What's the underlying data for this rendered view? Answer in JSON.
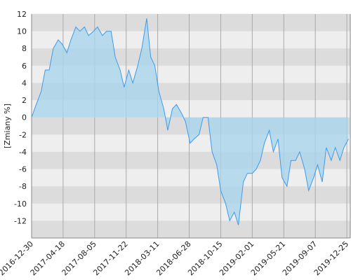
{
  "chart_data": {
    "type": "area",
    "y_label": "[Zmiany %]",
    "x": [
      "2016-12-30",
      "2017-01-15",
      "2017-02-01",
      "2017-02-15",
      "2017-03-01",
      "2017-03-15",
      "2017-04-01",
      "2017-04-15",
      "2017-05-01",
      "2017-05-15",
      "2017-06-01",
      "2017-06-15",
      "2017-07-01",
      "2017-07-15",
      "2017-08-01",
      "2017-08-15",
      "2017-09-01",
      "2017-09-15",
      "2017-10-01",
      "2017-10-15",
      "2017-11-01",
      "2017-11-15",
      "2017-12-01",
      "2017-12-15",
      "2018-01-01",
      "2018-01-15",
      "2018-02-01",
      "2018-02-15",
      "2018-03-01",
      "2018-03-15",
      "2018-04-01",
      "2018-04-15",
      "2018-05-01",
      "2018-05-15",
      "2018-06-01",
      "2018-06-15",
      "2018-07-01",
      "2018-07-15",
      "2018-08-01",
      "2018-08-15",
      "2018-09-01",
      "2018-09-15",
      "2018-10-01",
      "2018-10-15",
      "2018-11-01",
      "2018-11-15",
      "2018-12-01",
      "2018-12-15",
      "2019-01-01",
      "2019-01-15",
      "2019-02-01",
      "2019-02-15",
      "2019-03-01",
      "2019-03-15",
      "2019-04-01",
      "2019-04-15",
      "2019-05-01",
      "2019-05-15",
      "2019-06-01",
      "2019-06-15",
      "2019-07-01",
      "2019-07-15",
      "2019-08-01",
      "2019-08-15",
      "2019-09-01",
      "2019-09-15",
      "2019-10-01",
      "2019-10-15",
      "2019-11-01",
      "2019-11-15",
      "2019-12-01",
      "2019-12-15",
      "2019-12-31"
    ],
    "values": [
      0,
      1.5,
      3,
      5.5,
      5.5,
      8,
      9,
      8.5,
      7.5,
      9,
      10.5,
      10,
      10.5,
      9.5,
      10,
      10.5,
      9.5,
      10,
      10,
      7,
      5.5,
      3.5,
      5.5,
      4,
      6,
      8,
      11.5,
      7,
      6,
      3,
      1,
      -1.5,
      1,
      1.5,
      0.5,
      -0.5,
      -3,
      -2.5,
      -2,
      0,
      0,
      -4,
      -5.5,
      -8.5,
      -10,
      -12,
      -11,
      -12.5,
      -7.5,
      -6.5,
      -6.5,
      -6,
      -5,
      -3,
      -1.5,
      -4,
      -2.5,
      -7,
      -8,
      -5,
      -5,
      -4,
      -6,
      -8.5,
      -7,
      -5.5,
      -7.5,
      -3.5,
      -5,
      -3.5,
      -5,
      -3.5,
      -2.5
    ],
    "color": "#3d9be9",
    "fill": "#a9d6ec",
    "xlim": [
      "2016-12-30",
      "2020-01-06"
    ],
    "xticks": [
      "2016-12-30",
      "2017-04-18",
      "2017-08-05",
      "2017-11-22",
      "2018-03-11",
      "2018-06-28",
      "2018-10-15",
      "2019-02-01",
      "2019-05-21",
      "2019-09-07",
      "2019-12-25"
    ],
    "ylim": [
      -14,
      12
    ],
    "yticks": [
      -12,
      -10,
      -8,
      -6,
      -4,
      -2,
      0,
      2,
      4,
      6,
      8,
      10,
      12
    ],
    "grid": true
  }
}
